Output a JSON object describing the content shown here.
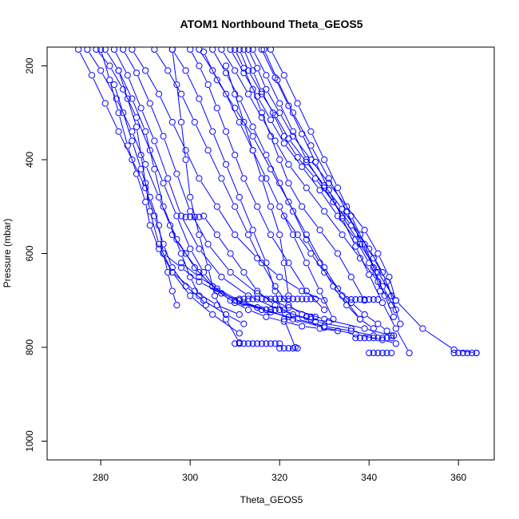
{
  "chart_data": {
    "type": "line",
    "title": "ATOM1 Northbound Theta_GEOS5",
    "xlabel": "Theta_GEOS5",
    "ylabel": "Pressure (mbar)",
    "xlim": [
      268,
      368
    ],
    "ylim": [
      1040,
      160
    ],
    "y_reversed": true,
    "grid": false,
    "line_style": "lines and open circles",
    "colors": {
      "series": "#0000ff",
      "axes": "#000000",
      "background": "#ffffff"
    },
    "xticks": [
      280,
      300,
      320,
      340,
      360
    ],
    "yticks": [
      200,
      400,
      600,
      800,
      1000
    ],
    "series": [
      {
        "x": [
          277.0,
          280.0,
          283.5,
          287.0,
          290.0,
          293.0,
          295.5,
          298.0,
          300.0,
          302.0,
          303.5
        ],
        "y": [
          165,
          210,
          270,
          340,
          410,
          480,
          540,
          600,
          650,
          690,
          710
        ]
      },
      {
        "x": [
          279.0,
          282.0,
          285.0,
          288.0,
          291.0,
          294.0,
          297.0,
          300.0,
          303.0,
          306.0,
          310.0,
          315.0
        ],
        "y": [
          165,
          200,
          250,
          310,
          380,
          450,
          520,
          590,
          640,
          680,
          705,
          715
        ]
      },
      {
        "x": [
          281.0,
          284.0,
          287.0,
          290.0,
          292.0,
          294.0,
          297.0,
          301.0,
          305.0,
          310.0,
          316.0,
          322.0
        ],
        "y": [
          165,
          210,
          270,
          340,
          420,
          500,
          570,
          630,
          670,
          700,
          720,
          735
        ]
      },
      {
        "x": [
          283.0,
          286.0,
          289.0,
          292.0,
          295.0,
          298.0,
          302.0,
          307.0,
          313.0,
          320.0,
          328.0,
          336.0
        ],
        "y": [
          165,
          220,
          290,
          360,
          440,
          520,
          590,
          650,
          690,
          720,
          745,
          760
        ]
      },
      {
        "x": [
          285.0,
          288.0,
          291.0,
          294.0,
          297.0,
          300.0,
          304.0,
          309.0,
          315.0,
          322.0,
          330.0,
          339.0,
          345.0
        ],
        "y": [
          165,
          215,
          280,
          350,
          430,
          510,
          580,
          640,
          685,
          715,
          740,
          760,
          775
        ]
      },
      {
        "x": [
          275.0,
          278.0,
          281.0,
          284.0,
          287.0,
          290.0,
          292.0,
          294.0,
          296.0,
          299.0,
          303.0,
          308.0,
          312.0
        ],
        "y": [
          165,
          220,
          280,
          340,
          400,
          460,
          520,
          580,
          630,
          670,
          700,
          730,
          750
        ]
      },
      {
        "x": [
          280.0,
          282.0,
          284.0,
          286.0,
          288.0,
          290.0,
          291.0,
          293.0,
          296.0,
          301.0,
          306.0,
          311.0
        ],
        "y": [
          165,
          230,
          300,
          370,
          430,
          490,
          540,
          590,
          640,
          680,
          710,
          730
        ]
      },
      {
        "x": [
          287.0,
          290.0,
          293.0,
          296.0,
          299.0,
          302.0,
          306.0,
          310.0,
          315.0,
          320.0,
          325.0,
          330.0
        ],
        "y": [
          165,
          210,
          260,
          320,
          380,
          440,
          500,
          560,
          610,
          650,
          680,
          700
        ]
      },
      {
        "x": [
          292.0,
          295.0,
          298.0,
          301.0,
          304.0,
          307.0,
          310.0,
          313.0,
          316.0,
          319.0,
          322.0,
          325.0
        ],
        "y": [
          165,
          210,
          260,
          320,
          380,
          440,
          500,
          560,
          620,
          670,
          710,
          730
        ]
      },
      {
        "x": [
          296.0,
          299.0,
          302.0,
          305.0,
          308.0,
          311.0,
          314.0,
          317.0,
          319.0,
          321.0,
          323.5
        ],
        "y": [
          165,
          210,
          270,
          340,
          410,
          480,
          550,
          620,
          680,
          740,
          800
        ]
      },
      {
        "x": [
          302.0,
          305.0,
          308.0,
          311.0,
          314.0,
          317.0,
          320.0,
          323.0,
          326.0,
          329.0,
          332.0
        ],
        "y": [
          165,
          210,
          260,
          320,
          380,
          440,
          500,
          560,
          620,
          680,
          740
        ]
      },
      {
        "x": [
          305.0,
          308.0,
          311.0,
          314.0,
          317.0,
          320.0,
          323.0,
          326.0,
          329.0,
          332.0,
          335.0,
          338.0,
          341.0
        ],
        "y": [
          165,
          215,
          270,
          330,
          390,
          450,
          510,
          570,
          620,
          670,
          710,
          740,
          760
        ]
      },
      {
        "x": [
          307.0,
          310.0,
          313.0,
          316.0,
          319.0,
          322.0,
          326.0,
          330.0,
          334.0,
          338.0,
          342.0,
          345.0
        ],
        "y": [
          165,
          210,
          260,
          310,
          360,
          410,
          460,
          510,
          560,
          610,
          660,
          710
        ]
      },
      {
        "x": [
          309.0,
          312.0,
          315.0,
          318.0,
          321.0,
          325.0,
          329.0,
          333.0,
          337.0,
          340.0,
          343.0,
          346.0
        ],
        "y": [
          165,
          215,
          265,
          315,
          365,
          415,
          465,
          520,
          570,
          620,
          670,
          720
        ]
      },
      {
        "x": [
          311.0,
          313.0,
          316.0,
          319.0,
          322.0,
          326.0,
          330.0,
          334.0,
          338.0,
          341.0,
          344.0,
          347.0
        ],
        "y": [
          165,
          210,
          260,
          305,
          355,
          405,
          455,
          505,
          560,
          610,
          660,
          750
        ]
      },
      {
        "x": [
          313.0,
          315.0,
          317.0,
          320.0,
          323.0,
          327.0,
          331.0,
          335.0,
          339.0,
          342.0,
          344.5,
          346.0
        ],
        "y": [
          165,
          205,
          250,
          300,
          350,
          400,
          450,
          500,
          550,
          600,
          650,
          700
        ]
      },
      {
        "x": [
          312.0,
          314.0,
          316.0,
          318.5,
          321.0,
          324.0,
          328.0,
          332.0,
          336.0,
          340.0,
          343.0,
          345.0
        ],
        "y": [
          165,
          210,
          255,
          300,
          350,
          395,
          440,
          490,
          540,
          590,
          640,
          690
        ]
      },
      {
        "x": [
          310.0,
          312.0,
          314.0,
          316.0,
          318.0,
          320.0,
          322.0,
          325.0,
          329.0,
          333.0,
          336.0,
          339.0
        ],
        "y": [
          165,
          205,
          250,
          300,
          350,
          400,
          450,
          500,
          550,
          600,
          650,
          700
        ]
      },
      {
        "x": [
          300.0,
          302.0,
          304.0,
          306.0,
          308.0,
          310.0,
          312.0,
          315.0,
          318.0,
          322.0,
          326.0,
          330.0
        ],
        "y": [
          165,
          200,
          240,
          290,
          340,
          390,
          440,
          500,
          560,
          620,
          680,
          720
        ]
      },
      {
        "x": [
          314.0,
          317.0,
          320.0,
          323.0,
          326.0,
          330.0,
          334.0,
          338.0,
          342.0,
          346.0,
          352.0,
          359.0,
          364.0
        ],
        "y": [
          165,
          220,
          280,
          340,
          400,
          460,
          520,
          580,
          640,
          700,
          760,
          805,
          812
        ]
      },
      {
        "x": [
          316.0,
          319.0,
          322.0,
          325.0,
          328.0,
          331.0,
          334.0,
          337.0,
          340.0,
          343.0,
          346.0,
          349.0
        ],
        "y": [
          165,
          225,
          285,
          345,
          405,
          465,
          525,
          585,
          645,
          705,
          760,
          812
        ]
      },
      {
        "x": [
          316.5,
          319.5,
          323.0,
          327.0,
          331.0,
          335.0,
          338.5,
          341.5,
          343.5,
          345.5
        ],
        "y": [
          165,
          230,
          300,
          370,
          440,
          510,
          580,
          640,
          690,
          735
        ]
      },
      {
        "x": [
          318.0,
          321.0,
          324.0,
          327.0,
          330.0,
          333.0,
          336.0,
          339.0,
          341.0,
          342.5
        ],
        "y": [
          165,
          220,
          280,
          340,
          400,
          460,
          520,
          580,
          630,
          680
        ]
      },
      {
        "x": [
          308.0,
          310.0,
          312.0,
          314.0,
          316.0,
          318.0,
          320.0,
          321.0,
          322.0
        ],
        "y": [
          200,
          260,
          320,
          380,
          440,
          500,
          560,
          620,
          690
        ]
      },
      {
        "x": [
          296.0,
          297.0,
          298.0,
          299.0,
          300.0,
          302.0,
          304.0,
          305.5,
          308.0,
          311.0
        ],
        "y": [
          165,
          240,
          320,
          400,
          480,
          560,
          630,
          690,
          740,
          790
        ]
      },
      {
        "x": [
          283.0,
          285.0,
          287.0,
          289.0,
          291.0,
          293.0,
          294.0,
          295.0,
          296.0,
          297.0
        ],
        "y": [
          240,
          300,
          360,
          420,
          480,
          540,
          600,
          640,
          680,
          710
        ]
      },
      {
        "x": [
          284.0,
          286.0,
          288.0,
          289.0,
          290.0,
          291.0,
          293.0,
          296.0,
          300.0,
          305.0,
          311.0
        ],
        "y": [
          210,
          270,
          330,
          390,
          450,
          510,
          580,
          640,
          690,
          730,
          770
        ]
      },
      {
        "x": [
          303.0,
          306.0,
          310.0,
          314.0,
          318.0,
          322.0,
          326.0,
          330.0,
          334.0,
          338.0
        ],
        "y": [
          170,
          230,
          290,
          350,
          420,
          490,
          560,
          630,
          690,
          740
        ]
      },
      {
        "x": [
          296.0,
          299.0,
          302.0,
          305.0,
          309.0,
          313.0,
          317.0,
          321.0,
          325.0,
          329.0,
          333.0
        ],
        "y": [
          560,
          600,
          640,
          670,
          700,
          720,
          735,
          745,
          755,
          760,
          765
        ]
      },
      {
        "x": [
          294.0,
          298.0,
          302.0,
          307.0,
          312.0,
          318.0,
          324.0,
          330.0,
          336.0,
          341.0
        ],
        "y": [
          600,
          630,
          660,
          685,
          705,
          725,
          740,
          755,
          765,
          775
        ]
      },
      {
        "x": [
          298.0,
          302.0,
          306.0,
          311.0,
          317.0,
          323.0,
          330.0,
          337.0,
          343.0,
          346.0
        ],
        "y": [
          620,
          650,
          675,
          700,
          720,
          740,
          758,
          772,
          784,
          792
        ]
      },
      {
        "x": [
          303.0,
          306.0,
          309.0,
          312.0,
          315.0,
          319.0,
          323.0,
          327.0,
          331.0
        ],
        "y": [
          520,
          560,
          600,
          640,
          680,
          710,
          730,
          740,
          745
        ]
      },
      {
        "x": [
          321.0,
          324.0,
          327.0,
          330.0,
          333.0,
          336.0,
          339.0,
          342.0,
          344.0,
          345.5
        ],
        "y": [
          520,
          560,
          600,
          640,
          675,
          705,
          730,
          750,
          765,
          775
        ]
      },
      {
        "x": [
          310.0,
          311.0,
          312.0,
          313.0,
          314.0,
          315.0,
          316.0,
          317.0,
          318.0,
          319.0,
          320.0
        ],
        "y": [
          792,
          792,
          792,
          792,
          792,
          792,
          792,
          792,
          792,
          792,
          792
        ]
      },
      {
        "x": [
          320.0,
          321.0,
          322.0,
          323.0,
          324.0
        ],
        "y": [
          802,
          802,
          802,
          802,
          802
        ]
      },
      {
        "x": [
          311.0,
          312.0,
          313.0,
          314.0,
          315.0,
          316.0,
          317.0,
          318.0,
          319.0,
          320.0,
          321.0,
          322.0,
          323.0,
          324.0,
          325.0,
          326.0,
          327.0,
          328.0
        ],
        "y": [
          697,
          697,
          697,
          697,
          697,
          697,
          697,
          697,
          697,
          697,
          697,
          697,
          697,
          697,
          697,
          697,
          697,
          697
        ]
      },
      {
        "x": [
          316.0,
          317.0,
          318.0,
          319.0,
          320.0,
          321.0
        ],
        "y": [
          720,
          720,
          720,
          720,
          720,
          720
        ]
      },
      {
        "x": [
          326.0,
          327.0,
          328.0
        ],
        "y": [
          735,
          735,
          735
        ]
      },
      {
        "x": [
          299.0,
          300.0,
          301.0,
          302.0
        ],
        "y": [
          522,
          522,
          522,
          522
        ]
      },
      {
        "x": [
          335.0,
          336.0,
          337.0,
          338.0,
          339.0,
          340.0,
          341.0,
          342.0
        ],
        "y": [
          698,
          698,
          698,
          698,
          698,
          698,
          698,
          698
        ]
      },
      {
        "x": [
          337.0,
          338.0,
          339.0,
          340.0,
          341.0,
          342.0,
          343.0,
          344.0,
          345.0
        ],
        "y": [
          780,
          780,
          780,
          780,
          780,
          780,
          780,
          780,
          780
        ]
      },
      {
        "x": [
          340.0,
          341.0,
          342.0,
          343.0,
          344.0,
          345.0
        ],
        "y": [
          812,
          812,
          812,
          812,
          812,
          812
        ]
      },
      {
        "x": [
          359.0,
          360.0,
          361.0,
          362.0,
          363.0,
          364.0
        ],
        "y": [
          812,
          812,
          812,
          812,
          812,
          812
        ]
      }
    ]
  }
}
